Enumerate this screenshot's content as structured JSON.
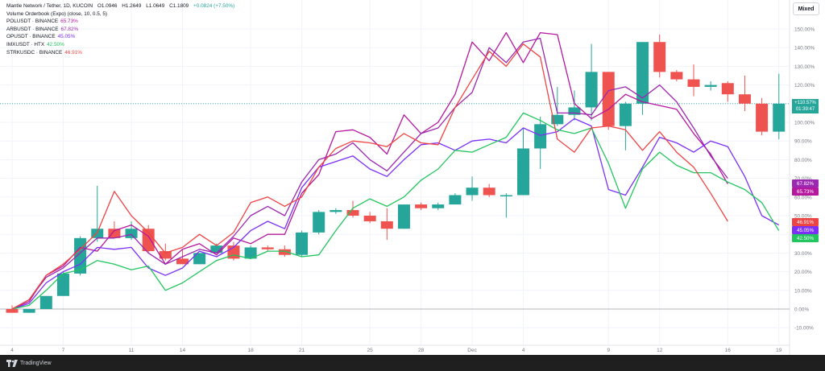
{
  "legend": {
    "main_symbol": "Mantle Network / Tether, 1D, KUCOIN",
    "ohlc": [
      "O1.0946",
      "H1.2649",
      "L1.0649",
      "C1.1809"
    ],
    "change": "+0.0824 (+7.50%)",
    "volume_label": "Volume Orderbook (Expo) (close, 10, 0.5, 5)",
    "items": [
      {
        "label": "POLUSDT · BINANCE",
        "value": "65.73%",
        "color": "#b5179e"
      },
      {
        "label": "ARBUSDT · BINANCE",
        "value": "67.82%",
        "color": "#9c27b0"
      },
      {
        "label": "OPUSDT · BINANCE",
        "value": "45.05%",
        "color": "#7b2ff7"
      },
      {
        "label": "IMXUSDT · HTX",
        "value": "42.50%",
        "color": "#22c55e"
      },
      {
        "label": "STRKUSDC · BINANCE",
        "value": "46.91%",
        "color": "#ef4444"
      }
    ]
  },
  "mode_button": "Mixed",
  "last_price": {
    "value": "+110.57%",
    "countdown": "01:39:47",
    "color": "#26a69a"
  },
  "footer": {
    "brand": "TradingView"
  },
  "colors": {
    "up": "#26a69a",
    "down": "#ef5350",
    "grid": "#f0f3fa",
    "axis_text": "#787b86"
  },
  "chart_data": {
    "type": "candlestick",
    "x_axis_labels": [
      {
        "label": "4",
        "index": 0
      },
      {
        "label": "7",
        "index": 3
      },
      {
        "label": "11",
        "index": 7
      },
      {
        "label": "14",
        "index": 10
      },
      {
        "label": "18",
        "index": 14
      },
      {
        "label": "21",
        "index": 17
      },
      {
        "label": "25",
        "index": 21
      },
      {
        "label": "28",
        "index": 24
      },
      {
        "label": "Dec",
        "index": 27
      },
      {
        "label": "4",
        "index": 30
      },
      {
        "label": "9",
        "index": 35
      },
      {
        "label": "12",
        "index": 38
      },
      {
        "label": "16",
        "index": 42
      },
      {
        "label": "19",
        "index": 45
      }
    ],
    "y_ticks": [
      "-10.00%",
      "0.00%",
      "10.00%",
      "20.00%",
      "30.00%",
      "40.00%",
      "50.00%",
      "60.00%",
      "70.00%",
      "80.00%",
      "90.00%",
      "100.00%",
      "110.00%",
      "120.00%",
      "130.00%",
      "140.00%",
      "150.00%"
    ],
    "y_range": [
      -15,
      160
    ],
    "candles": [
      {
        "o": 0,
        "h": 2,
        "l": -2,
        "c": -2
      },
      {
        "o": -2,
        "h": 0,
        "l": -2,
        "c": 0
      },
      {
        "o": 0,
        "h": 7,
        "l": 0,
        "c": 7
      },
      {
        "o": 7,
        "h": 20,
        "l": 7,
        "c": 19
      },
      {
        "o": 19,
        "h": 39,
        "l": 18,
        "c": 38
      },
      {
        "o": 38,
        "h": 66,
        "l": 36,
        "c": 43
      },
      {
        "o": 43,
        "h": 47,
        "l": 38,
        "c": 38
      },
      {
        "o": 38,
        "h": 47,
        "l": 37,
        "c": 43
      },
      {
        "o": 43,
        "h": 45,
        "l": 30,
        "c": 31
      },
      {
        "o": 31,
        "h": 35,
        "l": 26,
        "c": 27
      },
      {
        "o": 27,
        "h": 32,
        "l": 24,
        "c": 24
      },
      {
        "o": 24,
        "h": 30,
        "l": 24,
        "c": 30
      },
      {
        "o": 30,
        "h": 35,
        "l": 30,
        "c": 34
      },
      {
        "o": 34,
        "h": 36,
        "l": 26,
        "c": 27
      },
      {
        "o": 27,
        "h": 34,
        "l": 27,
        "c": 33
      },
      {
        "o": 33,
        "h": 34,
        "l": 31,
        "c": 32
      },
      {
        "o": 32,
        "h": 34,
        "l": 28,
        "c": 29
      },
      {
        "o": 29,
        "h": 42,
        "l": 28,
        "c": 41
      },
      {
        "o": 41,
        "h": 53,
        "l": 40,
        "c": 52
      },
      {
        "o": 52,
        "h": 54,
        "l": 51,
        "c": 53
      },
      {
        "o": 53,
        "h": 58,
        "l": 49,
        "c": 50
      },
      {
        "o": 50,
        "h": 52,
        "l": 46,
        "c": 47
      },
      {
        "o": 47,
        "h": 54,
        "l": 37,
        "c": 43
      },
      {
        "o": 43,
        "h": 56,
        "l": 43,
        "c": 56
      },
      {
        "o": 56,
        "h": 57,
        "l": 53,
        "c": 54
      },
      {
        "o": 54,
        "h": 57,
        "l": 53,
        "c": 56
      },
      {
        "o": 56,
        "h": 62,
        "l": 56,
        "c": 61
      },
      {
        "o": 61,
        "h": 71,
        "l": 58,
        "c": 65
      },
      {
        "o": 65,
        "h": 67,
        "l": 60,
        "c": 61
      },
      {
        "o": 61,
        "h": 62,
        "l": 49,
        "c": 61
      },
      {
        "o": 61,
        "h": 97,
        "l": 61,
        "c": 86
      },
      {
        "o": 86,
        "h": 103,
        "l": 75,
        "c": 99
      },
      {
        "o": 99,
        "h": 119,
        "l": 98,
        "c": 104
      },
      {
        "o": 104,
        "h": 117,
        "l": 101,
        "c": 108
      },
      {
        "o": 108,
        "h": 142,
        "l": 101,
        "c": 127
      },
      {
        "o": 127,
        "h": 127,
        "l": 96,
        "c": 98
      },
      {
        "o": 98,
        "h": 111,
        "l": 85,
        "c": 110
      },
      {
        "o": 110,
        "h": 143,
        "l": 104,
        "c": 143
      },
      {
        "o": 143,
        "h": 147,
        "l": 124,
        "c": 127
      },
      {
        "o": 127,
        "h": 128,
        "l": 122,
        "c": 123
      },
      {
        "o": 123,
        "h": 131,
        "l": 114,
        "c": 119
      },
      {
        "o": 119,
        "h": 122,
        "l": 117,
        "c": 120
      },
      {
        "o": 121,
        "h": 122,
        "l": 111,
        "c": 115
      },
      {
        "o": 115,
        "h": 125,
        "l": 106,
        "c": 110
      },
      {
        "o": 110,
        "h": 113,
        "l": 93,
        "c": 95
      },
      {
        "o": 95,
        "h": 126,
        "l": 91,
        "c": 110
      }
    ],
    "series": [
      {
        "name": "POLUSDT · BINANCE",
        "color": "#b5179e",
        "values": [
          0,
          4,
          18,
          23,
          33,
          31,
          42,
          45,
          39,
          24,
          32,
          35,
          29,
          38,
          35,
          40,
          40,
          62,
          72,
          95,
          96,
          92,
          83,
          104,
          94,
          100,
          115,
          143,
          133,
          148,
          132,
          148,
          147,
          110,
          102,
          107,
          115,
          111,
          109,
          107,
          94,
          83,
          67
        ]
      },
      {
        "name": "ARBUSDT · BINANCE",
        "color": "#9c27b0",
        "values": [
          0,
          5,
          17,
          22,
          30,
          38,
          38,
          40,
          30,
          24,
          28,
          32,
          30,
          39,
          50,
          55,
          50,
          68,
          80,
          83,
          89,
          80,
          74,
          84,
          94,
          97,
          108,
          116,
          140,
          132,
          143,
          145,
          105,
          105,
          104,
          117,
          119,
          113,
          120,
          111,
          97,
          82,
          70
        ]
      },
      {
        "name": "OPUSDT · BINANCE",
        "color": "#7b2ff7",
        "values": [
          0,
          3,
          14,
          20,
          24,
          33,
          32,
          33,
          22,
          18,
          22,
          31,
          28,
          33,
          42,
          47,
          43,
          65,
          76,
          79,
          82,
          75,
          71,
          80,
          88,
          89,
          85,
          90,
          91,
          89,
          97,
          93,
          95,
          102,
          98,
          64,
          61,
          76,
          92,
          89,
          84,
          90,
          87,
          71,
          50,
          45
        ]
      },
      {
        "name": "IMXUSDT · HTX",
        "color": "#22c55e",
        "values": [
          0,
          2,
          10,
          19,
          21,
          26,
          24,
          21,
          23,
          10,
          14,
          20,
          26,
          29,
          27,
          31,
          31,
          28,
          29,
          42,
          54,
          59,
          55,
          60,
          69,
          75,
          85,
          84,
          88,
          92,
          105,
          101,
          96,
          94,
          97,
          78,
          54,
          75,
          84,
          77,
          73,
          73,
          68,
          64,
          57,
          42
        ]
      },
      {
        "name": "STRKUSDC · BINANCE",
        "color": "#ef4444",
        "values": [
          0,
          5,
          18,
          24,
          32,
          41,
          63,
          50,
          41,
          30,
          33,
          40,
          34,
          41,
          57,
          60,
          55,
          60,
          76,
          86,
          90,
          89,
          87,
          94,
          89,
          88,
          108,
          123,
          138,
          130,
          142,
          135,
          91,
          84,
          97,
          98,
          96,
          85,
          95,
          84,
          76,
          62,
          47
        ]
      }
    ]
  }
}
